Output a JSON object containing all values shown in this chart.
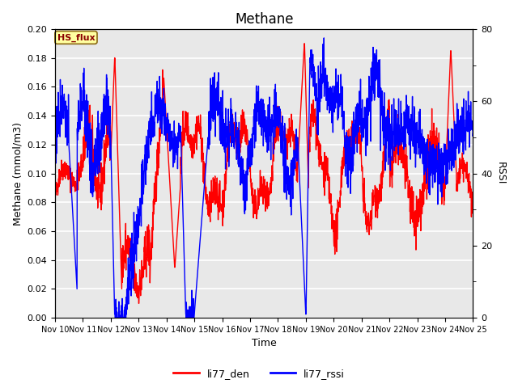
{
  "title": "Methane",
  "xlabel": "Time",
  "ylabel_left": "Methane (mmol/m3)",
  "ylabel_right": "RSSI",
  "ylim_left": [
    0.0,
    0.2
  ],
  "ylim_right": [
    0,
    80
  ],
  "yticks_left": [
    0.0,
    0.02,
    0.04,
    0.06,
    0.08,
    0.1,
    0.12,
    0.14,
    0.16,
    0.18,
    0.2
  ],
  "yticks_right_major": [
    0,
    20,
    40,
    60,
    80
  ],
  "yticks_right_minor": [
    10,
    30,
    50,
    70
  ],
  "xtick_labels": [
    "Nov 10",
    "Nov 11",
    "Nov 12",
    "Nov 13",
    "Nov 14",
    "Nov 15",
    "Nov 16",
    "Nov 17",
    "Nov 18",
    "Nov 19",
    "Nov 20",
    "Nov 21",
    "Nov 22",
    "Nov 23",
    "Nov 24",
    "Nov 25"
  ],
  "annotation_text": "HS_flux",
  "annotation_color": "#8B0000",
  "annotation_bg": "#FFFFA0",
  "annotation_border": "#8B6914",
  "legend_labels": [
    "li77_den",
    "li77_rssi"
  ],
  "line_color_red": "red",
  "line_color_blue": "blue",
  "line_width": 1.0,
  "bg_color": "#E8E8E8",
  "grid_color": "white",
  "title_fontsize": 12,
  "tick_fontsize": 8,
  "label_fontsize": 9
}
